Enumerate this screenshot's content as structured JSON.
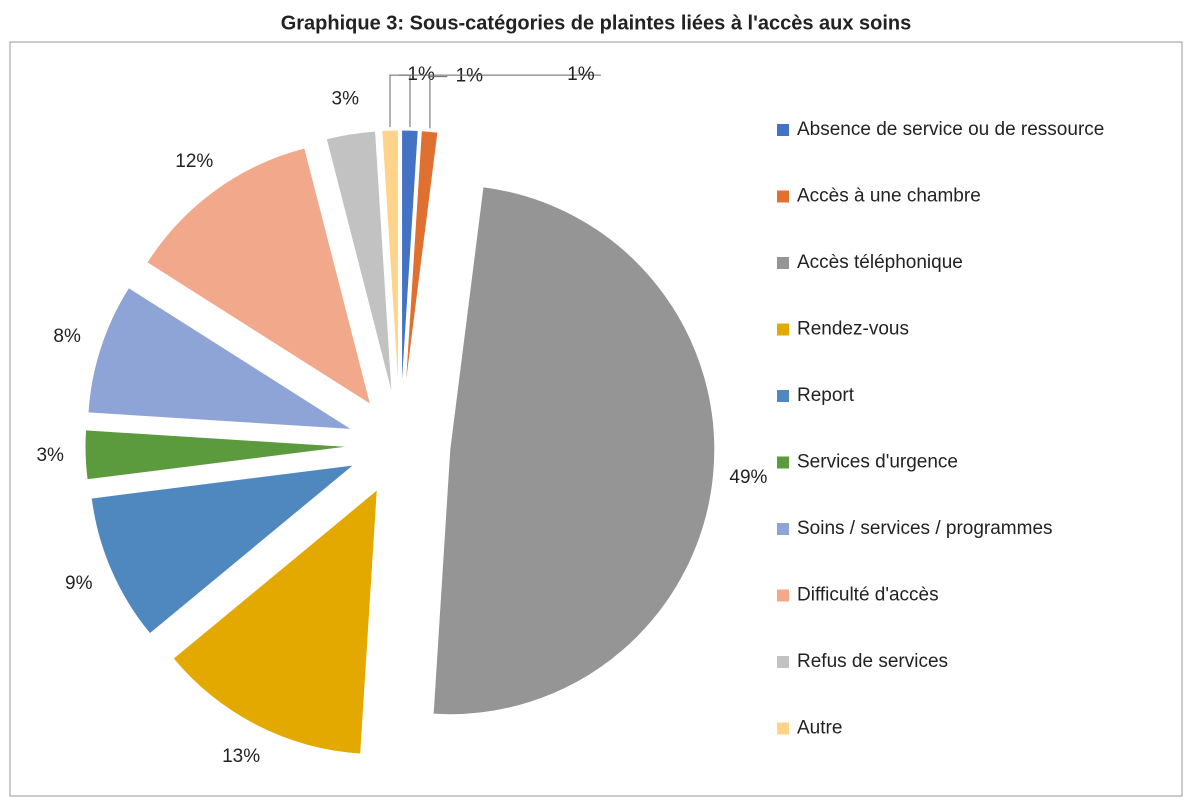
{
  "chart_data": {
    "type": "pie",
    "title": "Graphique 3: Sous-catégories de plaintes liées à l'accès aux soins",
    "categories": [
      "Absence de service ou de ressource",
      "Accès à une chambre",
      "Accès téléphonique",
      "Rendez-vous",
      "Report",
      "Services d'urgence",
      "Soins / services / programmes",
      "Difficulté d'accès",
      "Refus de services",
      "Autre"
    ],
    "values": [
      1,
      1,
      49,
      13,
      9,
      3,
      8,
      12,
      3,
      1
    ],
    "value_labels": [
      "1%",
      "1%",
      "49%",
      "13%",
      "9%",
      "3%",
      "8%",
      "12%",
      "3%",
      "1%"
    ],
    "colors": [
      "#4472c4",
      "#e07030",
      "#959595",
      "#e3a900",
      "#4e88bf",
      "#5b9a3d",
      "#8fa4d6",
      "#f2a88a",
      "#c2c2c2",
      "#ffd38a"
    ],
    "legend": "right"
  }
}
